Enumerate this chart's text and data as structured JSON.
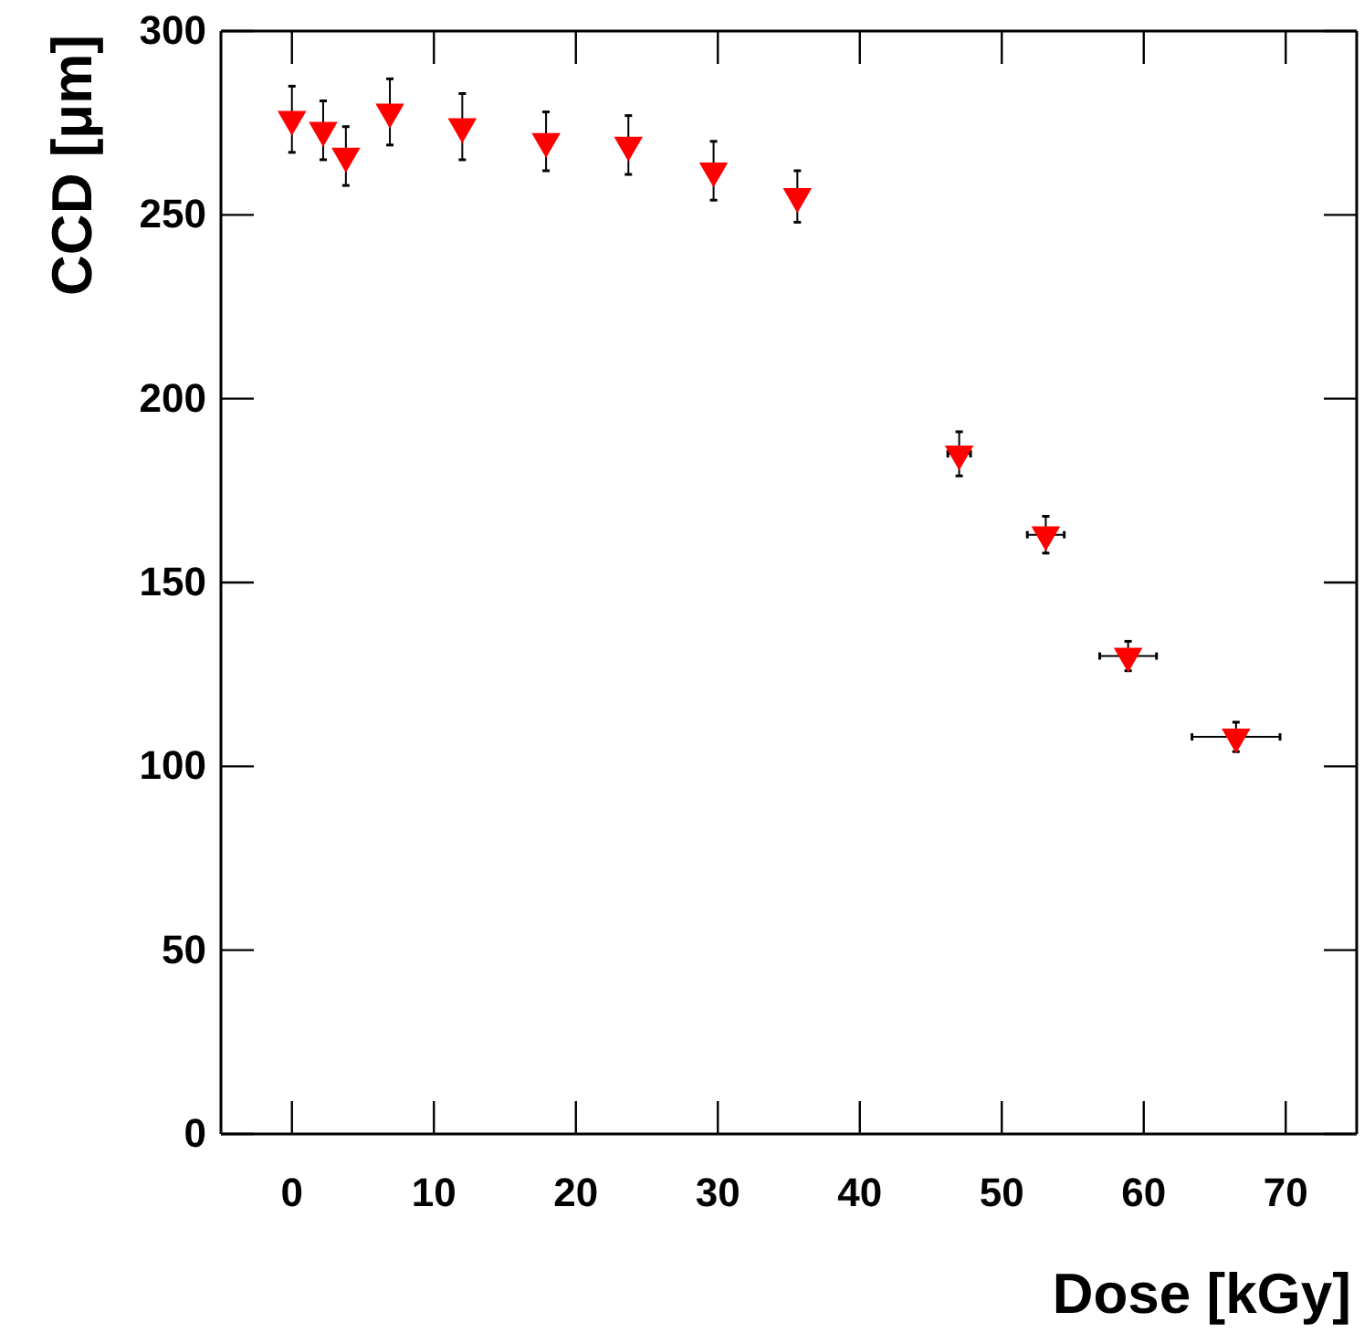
{
  "chart_data": {
    "type": "scatter",
    "xlabel": "Dose [kGy]",
    "ylabel": "CCD [μm]",
    "marker": "triangle",
    "grid": false,
    "x": [
      0,
      2.2,
      3.8,
      6.9,
      12,
      17.9,
      23.7,
      29.7,
      35.6,
      47,
      53.1,
      58.9,
      66.5
    ],
    "series": [
      {
        "color": "#ff0000",
        "values": [
          276,
          273,
          266,
          278,
          274,
          270,
          269,
          262,
          255,
          185,
          163,
          130,
          108
        ],
        "errors": [
          9,
          8,
          8,
          9,
          9,
          8,
          8,
          8,
          7,
          6,
          5,
          4,
          4
        ],
        "xerrors": [
          null,
          null,
          null,
          null,
          null,
          null,
          null,
          null,
          null,
          0.8,
          1.3,
          2,
          3.1
        ]
      }
    ],
    "xlim": [
      -5,
      75
    ],
    "ylim": [
      0,
      300
    ],
    "xticks": [
      0,
      10,
      20,
      30,
      40,
      50,
      60,
      70
    ],
    "yticks": [
      0,
      50,
      100,
      150,
      200,
      250,
      300
    ]
  }
}
